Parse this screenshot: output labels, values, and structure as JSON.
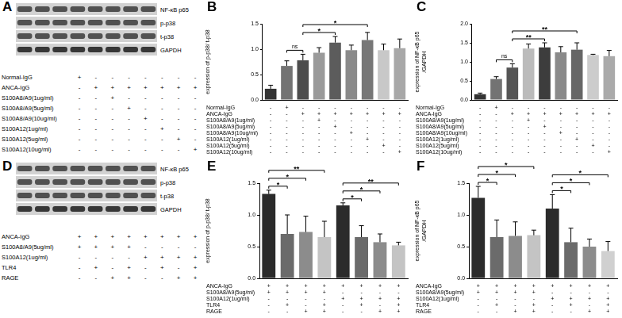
{
  "chart_data": [
    {
      "panel": "B",
      "type": "bar",
      "y_label": "expression of p-p38/ t-p38",
      "categories": [
        null,
        null,
        null,
        null,
        null,
        null,
        null,
        null,
        null
      ],
      "values": [
        0.22,
        0.67,
        0.78,
        0.93,
        1.13,
        0.98,
        1.18,
        0.98,
        1.02
      ],
      "errors": [
        0.07,
        0.1,
        0.12,
        0.1,
        0.12,
        0.1,
        0.15,
        0.12,
        0.18
      ],
      "colors": [
        "#333333",
        "#737373",
        "#4d4d4d",
        "#9a9a9a",
        "#5c5c5c",
        "#8a8a8a",
        "#777777",
        "#c8c8c8",
        "#a8a8a8"
      ],
      "ylim": [
        0,
        1.5
      ],
      "yticks": [
        {
          "value": 0,
          "label": "0.0"
        },
        0.5,
        {
          "value": 1,
          "label": "1.0"
        },
        1.5
      ],
      "grid": false,
      "tick_labels": "y",
      "significance": [
        {
          "from": 1,
          "to": 2,
          "label": "ns"
        },
        {
          "from": 2,
          "to": 4,
          "label": "*"
        },
        {
          "from": 2,
          "to": 6,
          "label": "*"
        }
      ],
      "conditions": [
        {
          "label": "Normal-IgG",
          "marks": [
            "-",
            "+",
            "-",
            "-",
            "-",
            "-",
            "-",
            "-",
            "-"
          ]
        },
        {
          "label": "ANCA-IgG",
          "marks": [
            "-",
            "-",
            "+",
            "+",
            "+",
            "+",
            "+",
            "+",
            "+"
          ]
        },
        {
          "label": "S100A8/A9(1ug/ml)",
          "marks": [
            "-",
            "-",
            "-",
            "+",
            "-",
            "-",
            "-",
            "-",
            "-"
          ]
        },
        {
          "label": "S100A8/A9(5ug/ml)",
          "marks": [
            "-",
            "-",
            "-",
            "-",
            "+",
            "-",
            "-",
            "-",
            "-"
          ]
        },
        {
          "label": "S100A8/A9(10ug/ml)",
          "marks": [
            "-",
            "-",
            "-",
            "-",
            "-",
            "+",
            "-",
            "-",
            "-"
          ]
        },
        {
          "label": "S100A12(1ug/ml)",
          "marks": [
            "-",
            "-",
            "-",
            "-",
            "-",
            "-",
            "+",
            "-",
            "-"
          ]
        },
        {
          "label": "S100A12(5ug/ml)",
          "marks": [
            "-",
            "-",
            "-",
            "-",
            "-",
            "-",
            "-",
            "+",
            "-"
          ]
        },
        {
          "label": "S100A12(10ug/ml)",
          "marks": [
            "-",
            "-",
            "-",
            "-",
            "-",
            "-",
            "-",
            "-",
            "+"
          ]
        }
      ]
    },
    {
      "panel": "C",
      "type": "bar",
      "y_label": [
        "expression of NF-κB p65",
        "/GAPDH"
      ],
      "categories": [
        null,
        null,
        null,
        null,
        null,
        null,
        null,
        null,
        null
      ],
      "values": [
        0.15,
        0.55,
        0.85,
        1.35,
        1.38,
        1.25,
        1.32,
        1.18,
        1.15
      ],
      "errors": [
        0.03,
        0.06,
        0.1,
        0.12,
        0.12,
        0.15,
        0.18,
        0.02,
        0.15
      ],
      "colors": [
        "#333333",
        "#737373",
        "#555555",
        "#bbbbbb",
        "#3d3d3d",
        "#8a8a8a",
        "#666666",
        "#cccccc",
        "#aaaaaa"
      ],
      "ylim": [
        0,
        2
      ],
      "yticks": [
        {
          "value": 0,
          "label": "0.0"
        },
        0.5,
        {
          "value": 1,
          "label": "1.0"
        },
        1.5,
        {
          "value": 2,
          "label": "2.0"
        }
      ],
      "grid": false,
      "tick_labels": "y",
      "significance": [
        {
          "from": 1,
          "to": 2,
          "label": "ns"
        },
        {
          "from": 2,
          "to": 4,
          "label": "**"
        },
        {
          "from": 2,
          "to": 6,
          "label": "**"
        }
      ],
      "conditions": [
        {
          "label": "Normal-IgG",
          "marks": [
            "-",
            "+",
            "-",
            "-",
            "-",
            "-",
            "-",
            "-",
            "-"
          ]
        },
        {
          "label": "ANCA-IgG",
          "marks": [
            "-",
            "-",
            "+",
            "+",
            "+",
            "+",
            "+",
            "+",
            "+"
          ]
        },
        {
          "label": "S100A8/A9(1ug/ml)",
          "marks": [
            "-",
            "-",
            "-",
            "+",
            "-",
            "-",
            "-",
            "-",
            "-"
          ]
        },
        {
          "label": "S100A8/A9(5ug/ml)",
          "marks": [
            "-",
            "-",
            "-",
            "-",
            "+",
            "-",
            "-",
            "-",
            "-"
          ]
        },
        {
          "label": "S100A8/A9(10ug/ml)",
          "marks": [
            "-",
            "-",
            "-",
            "-",
            "-",
            "+",
            "-",
            "-",
            "-"
          ]
        },
        {
          "label": "S100A12(1ug/ml)",
          "marks": [
            "-",
            "-",
            "-",
            "-",
            "-",
            "-",
            "+",
            "-",
            "-"
          ]
        },
        {
          "label": "S100A12(5ug/ml)",
          "marks": [
            "-",
            "-",
            "-",
            "-",
            "-",
            "-",
            "-",
            "+",
            "-"
          ]
        },
        {
          "label": "S100A12(10ug/ml)",
          "marks": [
            "-",
            "-",
            "-",
            "-",
            "-",
            "-",
            "-",
            "-",
            "+"
          ]
        }
      ]
    },
    {
      "panel": "E",
      "type": "bar",
      "y_label": "expression of p-p38/ t-p38",
      "categories": [
        null,
        null,
        null,
        null,
        null,
        null,
        null,
        null
      ],
      "values": [
        1.33,
        0.7,
        0.73,
        0.65,
        1.15,
        0.65,
        0.57,
        0.52
      ],
      "errors": [
        0.06,
        0.3,
        0.25,
        0.25,
        0.04,
        0.18,
        0.13,
        0.05
      ],
      "colors": [
        "#2b2b2b",
        "#6b6b6b",
        "#8c8c8c",
        "#c4c4c4",
        "#2b2b2b",
        "#6b6b6b",
        "#8c8c8c",
        "#c4c4c4"
      ],
      "ylim": [
        0,
        1.5
      ],
      "yticks": [
        {
          "value": 0,
          "label": "0.0"
        },
        0.5,
        {
          "value": 1,
          "label": "1.0"
        },
        1.5
      ],
      "grid": false,
      "tick_labels": "y",
      "significance": [
        {
          "from": 0,
          "to": 1,
          "label": "*"
        },
        {
          "from": 0,
          "to": 2,
          "label": "*"
        },
        {
          "from": 0,
          "to": 3,
          "label": "**"
        },
        {
          "from": 4,
          "to": 5,
          "label": "*"
        },
        {
          "from": 4,
          "to": 6,
          "label": "*"
        },
        {
          "from": 4,
          "to": 7,
          "label": "**"
        }
      ],
      "conditions": [
        {
          "label": "ANCA-IgG",
          "marks": [
            "+",
            "+",
            "+",
            "+",
            "+",
            "+",
            "+",
            "+"
          ]
        },
        {
          "label": "S100A8/A9(5ug/ml)",
          "marks": [
            "+",
            "+",
            "+",
            "+",
            "-",
            "-",
            "-",
            "-"
          ]
        },
        {
          "label": "S100A12(1ug/ml)",
          "marks": [
            "-",
            "-",
            "-",
            "-",
            "+",
            "+",
            "+",
            "+"
          ]
        },
        {
          "label": "TLR4",
          "marks": [
            "-",
            "+",
            "-",
            "+",
            "-",
            "+",
            "-",
            "+"
          ]
        },
        {
          "label": "RAGE",
          "marks": [
            "-",
            "-",
            "+",
            "+",
            "-",
            "-",
            "+",
            "+"
          ]
        }
      ]
    },
    {
      "panel": "F",
      "type": "bar",
      "y_label": [
        "expression of NF-κB p65",
        "/GAPDH"
      ],
      "categories": [
        null,
        null,
        null,
        null,
        null,
        null,
        null,
        null
      ],
      "values": [
        1.27,
        0.65,
        0.67,
        0.68,
        1.1,
        0.57,
        0.5,
        0.43
      ],
      "errors": [
        0.18,
        0.27,
        0.22,
        0.08,
        0.22,
        0.22,
        0.12,
        0.15
      ],
      "colors": [
        "#2b2b2b",
        "#6b6b6b",
        "#8c8c8c",
        "#c4c4c4",
        "#2b2b2b",
        "#6b6b6b",
        "#8c8c8c",
        "#d0d0d0"
      ],
      "ylim": [
        0,
        1.5
      ],
      "yticks": [
        {
          "value": 0,
          "label": "0.0"
        },
        0.5,
        {
          "value": 1,
          "label": "1.0"
        },
        1.5
      ],
      "grid": false,
      "tick_labels": "y",
      "significance": [
        {
          "from": 0,
          "to": 1,
          "label": "*"
        },
        {
          "from": 0,
          "to": 2,
          "label": "*"
        },
        {
          "from": 0,
          "to": 3,
          "label": "*"
        },
        {
          "from": 4,
          "to": 5,
          "label": "*"
        },
        {
          "from": 4,
          "to": 6,
          "label": "*"
        },
        {
          "from": 4,
          "to": 7,
          "label": "*"
        }
      ],
      "conditions": [
        {
          "label": "ANCA-IgG",
          "marks": [
            "+",
            "+",
            "+",
            "+",
            "+",
            "+",
            "+",
            "+"
          ]
        },
        {
          "label": "S100A8/A9(5ug/ml)",
          "marks": [
            "+",
            "+",
            "+",
            "+",
            "-",
            "-",
            "-",
            "-"
          ]
        },
        {
          "label": "S100A12(1ug/ml)",
          "marks": [
            "-",
            "-",
            "-",
            "-",
            "+",
            "+",
            "+",
            "+"
          ]
        },
        {
          "label": "TLR4",
          "marks": [
            "-",
            "+",
            "-",
            "+",
            "-",
            "+",
            "-",
            "+"
          ]
        },
        {
          "label": "RAGE",
          "marks": [
            "-",
            "-",
            "+",
            "+",
            "-",
            "-",
            "+",
            "+"
          ]
        }
      ]
    }
  ],
  "blots": [
    {
      "panel": "A",
      "rows": [
        "NF-κB p65",
        "p-p38",
        "t-p38",
        "GAPDH"
      ],
      "conditions": [
        {
          "label": "Normal-IgG",
          "marks": [
            "+",
            "-",
            "-",
            "-",
            "-",
            "-",
            "-",
            "-"
          ]
        },
        {
          "label": "ANCA-IgG",
          "marks": [
            "-",
            "+",
            "+",
            "+",
            "+",
            "+",
            "+",
            "+"
          ]
        },
        {
          "label": "S100A8/A9(1ug/ml)",
          "marks": [
            "-",
            "-",
            "+",
            "-",
            "-",
            "-",
            "-",
            "-"
          ]
        },
        {
          "label": "S100A8/A9(5ug/ml)",
          "marks": [
            "-",
            "-",
            "-",
            "+",
            "-",
            "-",
            "-",
            "-"
          ]
        },
        {
          "label": "S100A8/A9(10ug/ml)",
          "marks": [
            "-",
            "-",
            "-",
            "-",
            "+",
            "-",
            "-",
            "-"
          ]
        },
        {
          "label": "S100A12(1ug/ml)",
          "marks": [
            "-",
            "-",
            "-",
            "-",
            "-",
            "+",
            "-",
            "-"
          ]
        },
        {
          "label": "S100A12(5ug/ml)",
          "marks": [
            "-",
            "-",
            "-",
            "-",
            "-",
            "-",
            "+",
            "-"
          ]
        },
        {
          "label": "S100A12(10ug/ml)",
          "marks": [
            "-",
            "-",
            "-",
            "-",
            "-",
            "-",
            "-",
            "+"
          ]
        }
      ]
    },
    {
      "panel": "D",
      "rows": [
        "NF-κB p65",
        "p-p38",
        "t-p38",
        "GAPDH"
      ],
      "conditions": [
        {
          "label": "ANCA-IgG",
          "marks": [
            "+",
            "+",
            "+",
            "+",
            "+",
            "+",
            "+",
            "+"
          ]
        },
        {
          "label": "S100A8/A9(5ug/ml)",
          "marks": [
            "+",
            "+",
            "+",
            "+",
            "-",
            "-",
            "-",
            "-"
          ]
        },
        {
          "label": "S100A12(1ug/ml)",
          "marks": [
            "-",
            "-",
            "-",
            "-",
            "+",
            "+",
            "+",
            "+"
          ]
        },
        {
          "label": "TLR4",
          "marks": [
            "-",
            "+",
            "-",
            "+",
            "-",
            "+",
            "-",
            "+"
          ]
        },
        {
          "label": "RAGE",
          "marks": [
            "-",
            "-",
            "+",
            "+",
            "-",
            "-",
            "+",
            "+"
          ]
        }
      ]
    }
  ]
}
